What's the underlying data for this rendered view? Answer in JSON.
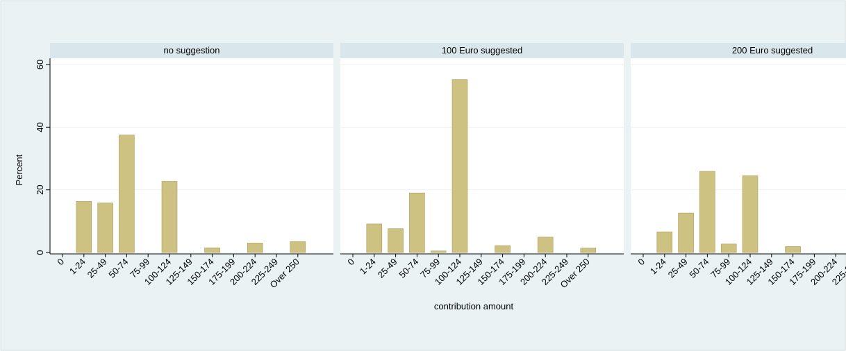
{
  "chart_data": {
    "type": "bar",
    "ylabel": "Percent",
    "xlabel": "contribution amount",
    "categories": [
      "0",
      "1-24",
      "25-49",
      "50-74",
      "75-99",
      "100-124",
      "125-149",
      "150-174",
      "175-199",
      "200-224",
      "225-249",
      "Over 250"
    ],
    "color": "#cdc282",
    "ylim": [
      0,
      60
    ],
    "yticks": [
      0,
      20,
      40,
      60
    ],
    "grid": true,
    "series": [
      {
        "name": "no suggestion",
        "values": [
          0,
          16.3,
          15.8,
          37.5,
          0,
          22.7,
          0,
          1.5,
          0,
          3,
          0,
          3.5
        ]
      },
      {
        "name": "100 Euro suggested",
        "values": [
          0,
          9.1,
          7.6,
          19,
          0.5,
          55.2,
          0,
          2.2,
          0,
          4.9,
          0,
          1.4
        ]
      },
      {
        "name": "200 Euro suggested",
        "values": [
          0,
          6.6,
          12.6,
          25.9,
          2.7,
          24.5,
          0,
          1.9,
          0,
          null,
          null,
          null
        ]
      }
    ]
  }
}
